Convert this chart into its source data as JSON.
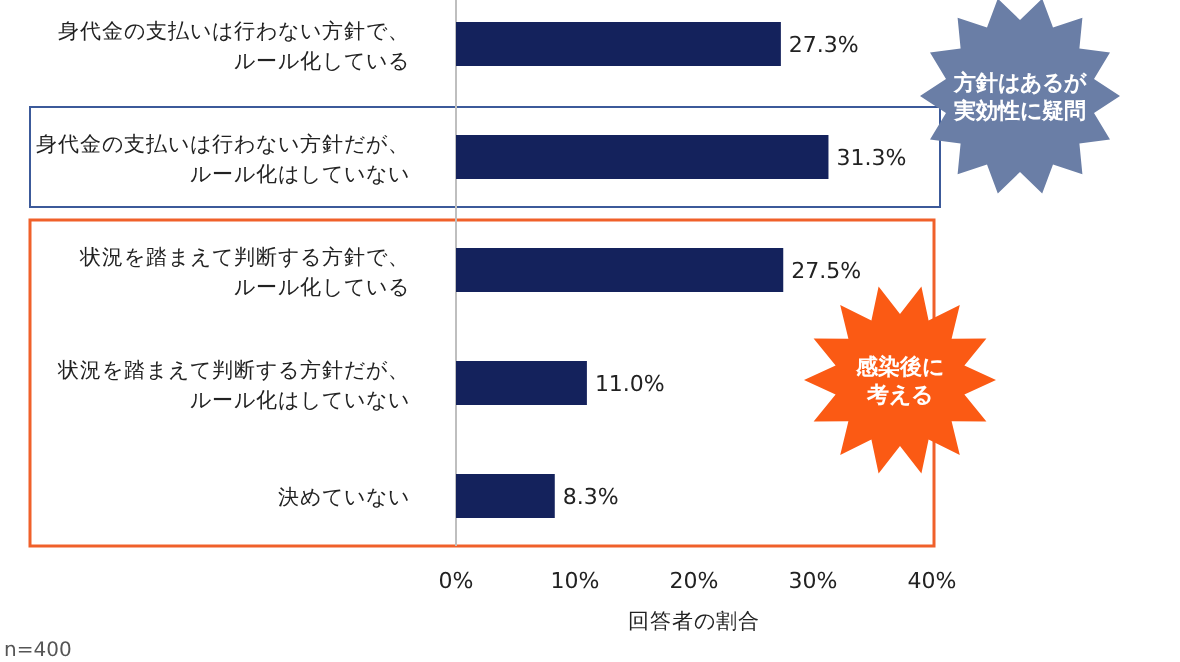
{
  "chart_data": {
    "type": "bar",
    "orientation": "horizontal",
    "categories": [
      "身代金の支払いは行わない方針で、ルール化している",
      "身代金の支払いは行わない方針だが、ルール化はしていない",
      "状況を踏まえて判断する方針で、ルール化している",
      "状況を踏まえて判断する方針だが、ルール化はしていない",
      "決めていない"
    ],
    "values": [
      27.3,
      31.3,
      27.5,
      11.0,
      8.3
    ],
    "value_labels": [
      "27.3%",
      "31.3%",
      "27.5%",
      "11.0%",
      "8.3%"
    ],
    "color": "#14225c",
    "xlim": [
      0,
      40
    ],
    "xticks": [
      {
        "value": 0,
        "label": "0%"
      },
      {
        "value": 10,
        "label": "10%"
      },
      {
        "value": 20,
        "label": "20%"
      },
      {
        "value": 30,
        "label": "30%"
      },
      {
        "value": 40,
        "label": "40%"
      }
    ],
    "xlabel": "回答者の割合",
    "annotations": [
      "n=400",
      "方針はあるが実効性に疑問",
      "感染後に考える"
    ]
  }
}
